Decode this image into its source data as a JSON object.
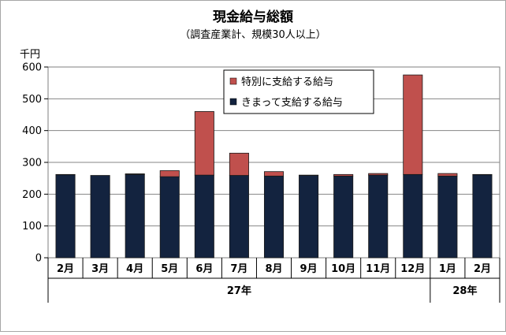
{
  "chart_data": {
    "type": "bar",
    "stacked": true,
    "title": "現金給与総額",
    "subtitle": "（調査産業計、規模30人以上）",
    "ylabel": "千円",
    "ylim": [
      0,
      600
    ],
    "yticks": [
      0,
      100,
      200,
      300,
      400,
      500,
      600
    ],
    "categories": [
      "2月",
      "3月",
      "4月",
      "5月",
      "6月",
      "7月",
      "8月",
      "9月",
      "10月",
      "11月",
      "12月",
      "1月",
      "2月"
    ],
    "year_groups": [
      {
        "label": "27年",
        "count": 11
      },
      {
        "label": "28年",
        "count": 2
      }
    ],
    "series": [
      {
        "name": "きまって支給する給与",
        "color": "#13233f",
        "values": [
          261,
          259,
          262,
          255,
          260,
          259,
          257,
          259,
          257,
          260,
          262,
          257,
          261
        ]
      },
      {
        "name": "特別に支給する給与",
        "color": "#c0504d",
        "values": [
          1,
          0,
          2,
          19,
          200,
          70,
          14,
          1,
          5,
          5,
          313,
          8,
          1
        ]
      }
    ],
    "grid": true,
    "legend_position": "top-center"
  }
}
